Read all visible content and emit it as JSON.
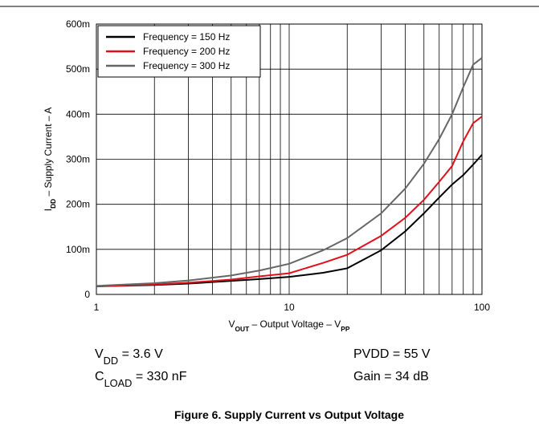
{
  "chart_data": {
    "type": "line",
    "title": "Figure 6. Supply Current vs Output Voltage",
    "xlabel": [
      "V",
      "OUT",
      " – Output Voltage – V",
      "PP"
    ],
    "ylabel": [
      "I",
      "DD",
      " – Supply Current – A"
    ],
    "xscale": "log",
    "xlim": [
      1,
      100
    ],
    "xticks": [
      1,
      10,
      100
    ],
    "xminorticks": [
      2,
      3,
      4,
      5,
      6,
      7,
      8,
      9,
      20,
      30,
      40,
      50,
      60,
      70,
      80,
      90
    ],
    "ylim": [
      0,
      0.6
    ],
    "yticks": [
      0,
      {
        "value": 0.1,
        "label": "100m"
      },
      {
        "value": 0.2,
        "label": "200m"
      },
      {
        "value": 0.3,
        "label": "300m"
      },
      {
        "value": 0.4,
        "label": "400m"
      },
      {
        "value": 0.5,
        "label": "500m"
      },
      {
        "value": 0.6,
        "label": "600m"
      }
    ],
    "grid": true,
    "legend": "upper left",
    "x": [
      1,
      2,
      3,
      5,
      7,
      10,
      15,
      20,
      30,
      40,
      50,
      60,
      70,
      80,
      90,
      100
    ],
    "series": [
      {
        "name": "Frequency = 150 Hz",
        "color": "#000000",
        "values": [
          0.018,
          0.021,
          0.024,
          0.03,
          0.034,
          0.039,
          0.048,
          0.058,
          0.098,
          0.14,
          0.18,
          0.215,
          0.244,
          0.265,
          0.288,
          0.31
        ]
      },
      {
        "name": "Frequency = 200 Hz",
        "color": "#e0101a",
        "values": [
          0.018,
          0.022,
          0.026,
          0.033,
          0.04,
          0.047,
          0.07,
          0.088,
          0.13,
          0.17,
          0.21,
          0.25,
          0.285,
          0.34,
          0.38,
          0.395
        ]
      },
      {
        "name": "Frequency = 300 Hz",
        "color": "#666666",
        "values": [
          0.019,
          0.025,
          0.031,
          0.042,
          0.053,
          0.068,
          0.098,
          0.125,
          0.18,
          0.235,
          0.29,
          0.345,
          0.4,
          0.46,
          0.51,
          0.525
        ]
      }
    ],
    "annotations": [
      {
        "parts": [
          "V",
          "DD",
          " = 3.6 V"
        ]
      },
      {
        "parts": [
          "PVDD = 55 V"
        ]
      },
      {
        "parts": [
          "C",
          "LOAD",
          " = 330 nF"
        ]
      },
      {
        "parts": [
          "Gain = 34 dB"
        ]
      }
    ]
  }
}
